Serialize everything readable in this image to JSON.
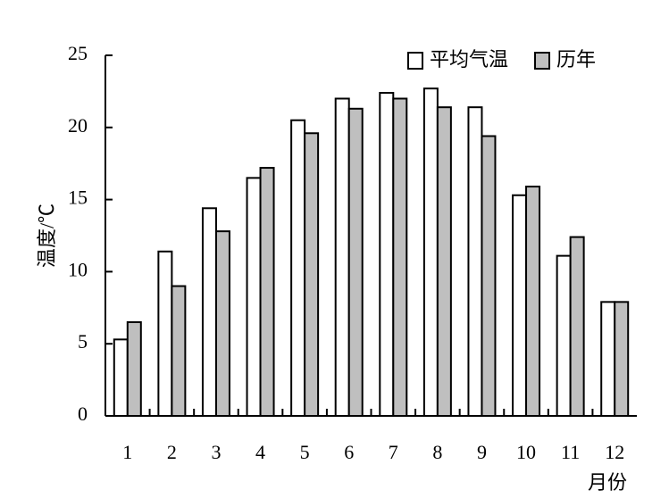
{
  "chart_data": {
    "type": "bar",
    "categories": [
      "1",
      "2",
      "3",
      "4",
      "5",
      "6",
      "7",
      "8",
      "9",
      "10",
      "11",
      "12"
    ],
    "series": [
      {
        "name": "平均气温",
        "color": "#ffffff",
        "values": [
          5.3,
          11.4,
          14.4,
          16.5,
          20.5,
          22.0,
          22.4,
          22.7,
          21.4,
          15.3,
          11.1,
          7.9
        ]
      },
      {
        "name": "历年",
        "color": "#bfbfbf",
        "values": [
          6.5,
          9.0,
          12.8,
          17.2,
          19.6,
          21.3,
          22.0,
          21.4,
          19.4,
          15.9,
          12.4,
          7.9
        ]
      }
    ],
    "ylim": [
      0,
      25
    ],
    "yticks": [
      0,
      5,
      10,
      15,
      20,
      25
    ],
    "y_label": "温度/℃",
    "x_label": "月份",
    "legend": "top-right"
  }
}
